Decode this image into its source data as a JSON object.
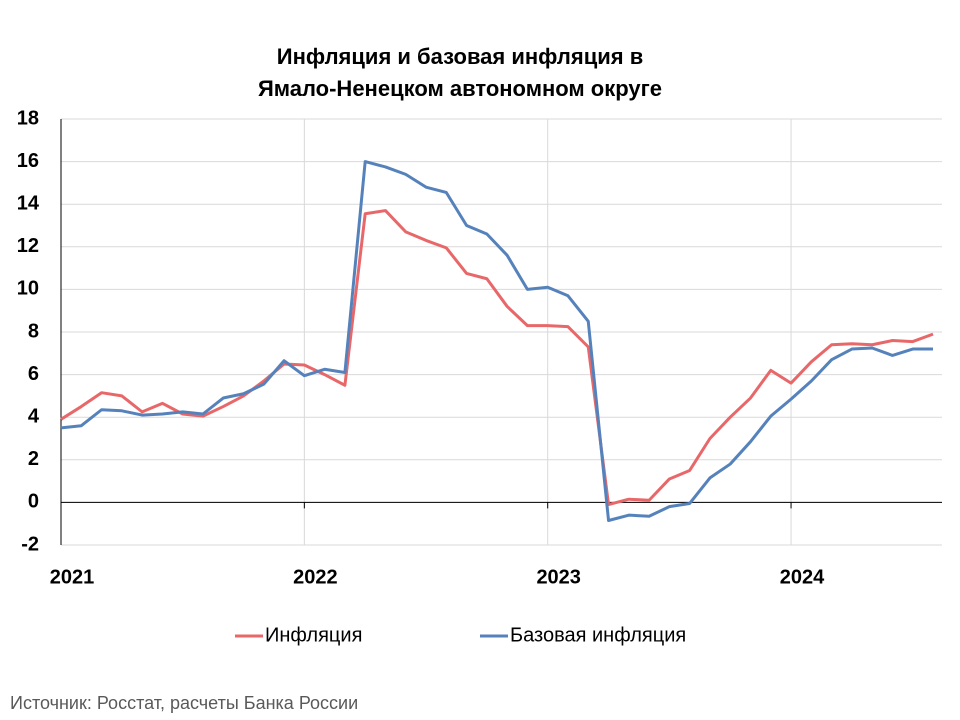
{
  "chart_data": {
    "type": "line",
    "title": [
      "Инфляция и базовая инфляция в",
      "Ямало-Ненецком автономном округе"
    ],
    "categories": [
      "2021",
      null,
      null,
      null,
      null,
      null,
      null,
      null,
      null,
      null,
      null,
      null,
      "2022",
      null,
      null,
      null,
      null,
      null,
      null,
      null,
      null,
      null,
      null,
      null,
      "2023",
      null,
      null,
      null,
      null,
      null,
      null,
      null,
      null,
      null,
      null,
      null,
      "2024",
      null,
      null,
      null,
      null,
      null,
      null,
      null
    ],
    "series": [
      {
        "name": "Инфляция",
        "color": "#e8686a",
        "values": [
          3.9,
          4.5,
          5.15,
          5.0,
          4.25,
          4.65,
          4.15,
          4.05,
          4.5,
          5.0,
          5.7,
          6.5,
          6.45,
          6.0,
          5.5,
          13.55,
          13.7,
          12.7,
          12.3,
          11.95,
          10.75,
          10.5,
          9.2,
          8.3,
          8.3,
          8.25,
          7.3,
          -0.1,
          0.15,
          0.1,
          1.1,
          1.5,
          3.0,
          4.0,
          4.9,
          6.2,
          5.6,
          6.6,
          7.4,
          7.45,
          7.4,
          7.6,
          7.55,
          7.9
        ]
      },
      {
        "name": "Базовая инфляция",
        "color": "#5682bc",
        "values": [
          3.5,
          3.6,
          4.35,
          4.3,
          4.1,
          4.15,
          4.25,
          4.15,
          4.9,
          5.1,
          5.55,
          6.65,
          5.95,
          6.25,
          6.1,
          16.0,
          15.75,
          15.4,
          14.8,
          14.55,
          13.0,
          12.6,
          11.6,
          10.0,
          10.1,
          9.7,
          8.5,
          -0.85,
          -0.6,
          -0.65,
          -0.2,
          -0.05,
          1.15,
          1.8,
          2.85,
          4.05,
          4.85,
          5.7,
          6.7,
          7.2,
          7.25,
          6.9,
          7.2,
          7.2
        ]
      }
    ],
    "ylim": [
      -2,
      18
    ],
    "yticks": [
      -2,
      0,
      2,
      4,
      6,
      8,
      10,
      12,
      14,
      16,
      18
    ],
    "grid": true,
    "legend": "bottom",
    "source": "Источник: Росстат, расчеты Банка России"
  }
}
